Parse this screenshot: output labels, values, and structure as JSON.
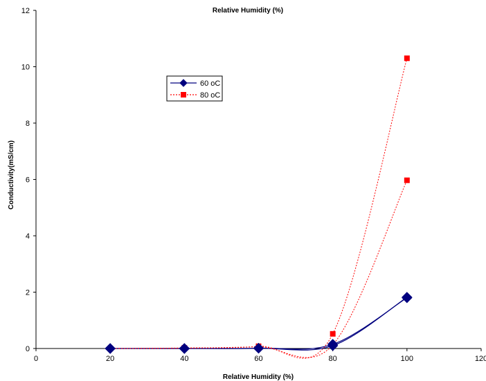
{
  "chart_data": {
    "type": "line",
    "title": "Relative Humidity (%)",
    "xlabel": "Relative Humidity (%)",
    "ylabel": "Conductivity(mS/cm)",
    "xlim": [
      0,
      120
    ],
    "ylim": [
      0,
      12
    ],
    "xticks": [
      "0",
      "20",
      "40",
      "60",
      "80",
      "100",
      "120"
    ],
    "yticks": [
      "0",
      "2",
      "4",
      "6",
      "8",
      "10",
      "12"
    ],
    "grid": false,
    "legend_position": "upper-left inside plot",
    "series": [
      {
        "name": "60 oC",
        "color": "#00007f",
        "marker": "diamond",
        "line_style": "solid",
        "curves": [
          {
            "x": [
              20,
              40,
              60,
              80,
              100
            ],
            "y": [
              0.0,
              0.0,
              0.01,
              0.15,
              1.8
            ]
          },
          {
            "x": [
              20,
              40,
              60,
              80,
              100
            ],
            "y": [
              0.0,
              0.0,
              0.01,
              0.1,
              1.82
            ]
          }
        ]
      },
      {
        "name": "80 oC",
        "color": "#ff0000",
        "marker": "square",
        "line_style": "dotted",
        "curves": [
          {
            "x": [
              20,
              40,
              60,
              80,
              100
            ],
            "y": [
              0.0,
              0.02,
              0.08,
              0.52,
              10.3
            ]
          },
          {
            "x": [
              20,
              40,
              60,
              80,
              100
            ],
            "y": [
              0.0,
              0.01,
              0.06,
              0.13,
              5.97
            ]
          }
        ]
      }
    ]
  }
}
